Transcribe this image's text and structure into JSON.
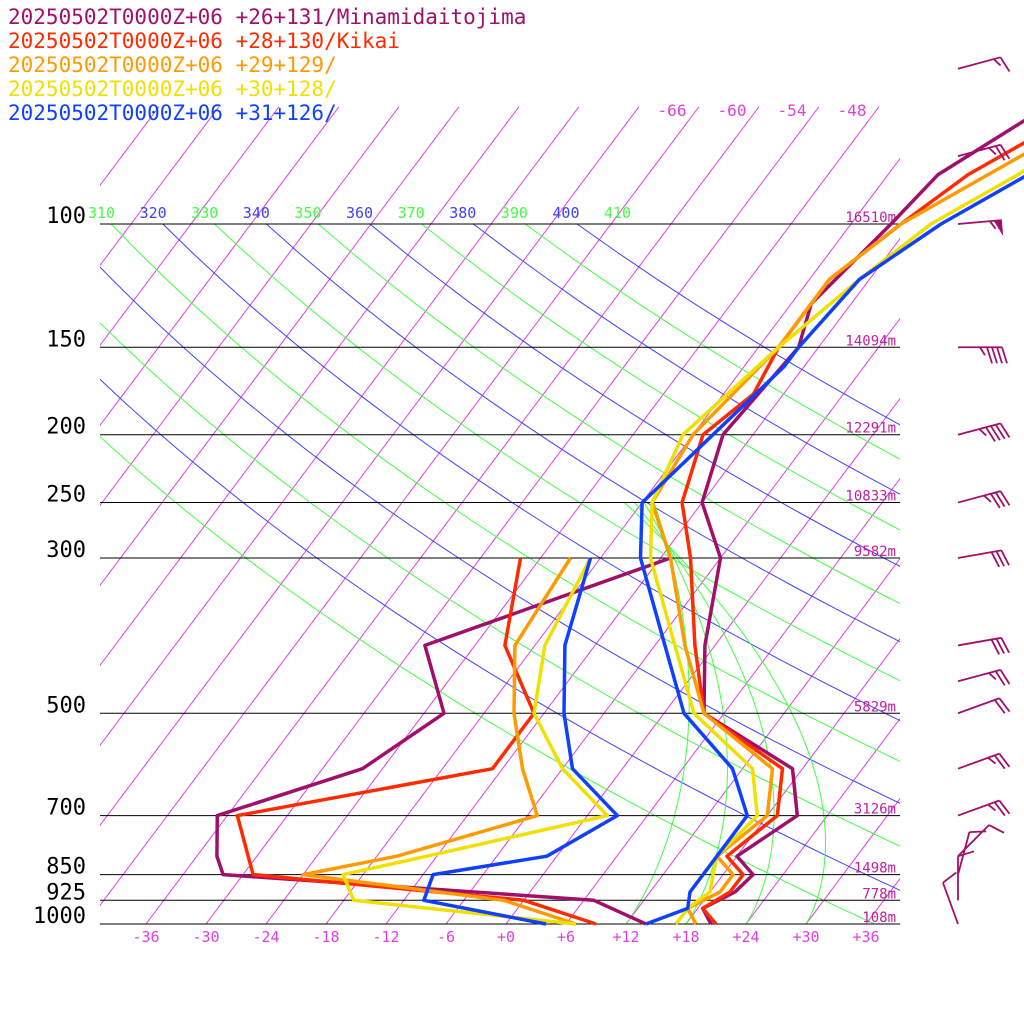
{
  "chart_data": {
    "type": "line",
    "title": "",
    "legend_placement": "top-left",
    "legend": [
      {
        "text": "20250502T0000Z+06 +26+131/Minamidaitojima",
        "color": "#a0106a"
      },
      {
        "text": "20250502T0000Z+06 +28+130/Kikai",
        "color": "#ff2a00"
      },
      {
        "text": "20250502T0000Z+06 +29+129/",
        "color": "#ff9a00"
      },
      {
        "text": "20250502T0000Z+06 +30+128/",
        "color": "#f0e000"
      },
      {
        "text": "20250502T0000Z+06 +31+126/",
        "color": "#1040ff"
      }
    ],
    "pressure_levels": [
      {
        "p": 100,
        "label": "100",
        "height": "16510m"
      },
      {
        "p": 150,
        "label": "150",
        "height": "14094m"
      },
      {
        "p": 200,
        "label": "200",
        "height": "12291m"
      },
      {
        "p": 250,
        "label": "250",
        "height": "10833m"
      },
      {
        "p": 300,
        "label": "300",
        "height": "9582m"
      },
      {
        "p": 500,
        "label": "500",
        "height": "5829m"
      },
      {
        "p": 700,
        "label": "700",
        "height": "3126m"
      },
      {
        "p": 850,
        "label": "850",
        "height": "1498m"
      },
      {
        "p": 925,
        "label": "925",
        "height": "778m"
      },
      {
        "p": 1000,
        "label": "1000",
        "height": "108m"
      }
    ],
    "x_ticks": [
      {
        "v": -36,
        "label": "-36"
      },
      {
        "v": -30,
        "label": "-30"
      },
      {
        "v": -24,
        "label": "-24"
      },
      {
        "v": -18,
        "label": "-18"
      },
      {
        "v": -12,
        "label": "-12"
      },
      {
        "v": -6,
        "label": "-6"
      },
      {
        "v": 0,
        "label": "+0"
      },
      {
        "v": 6,
        "label": "+6"
      },
      {
        "v": 12,
        "label": "+12"
      },
      {
        "v": 18,
        "label": "+18"
      },
      {
        "v": 24,
        "label": "+24"
      },
      {
        "v": 30,
        "label": "+30"
      },
      {
        "v": 36,
        "label": "+36"
      }
    ],
    "isotherm_top_labels": [
      {
        "v": -66,
        "label": "-66"
      },
      {
        "v": -60,
        "label": "-60"
      },
      {
        "v": -54,
        "label": "-54"
      },
      {
        "v": -48,
        "label": "-48"
      }
    ],
    "theta_labels": [
      {
        "label": "310",
        "color": "#40ff40"
      },
      {
        "label": "320",
        "color": "#4040ff"
      },
      {
        "label": "330",
        "color": "#40ff40"
      },
      {
        "label": "340",
        "color": "#4040ff"
      },
      {
        "label": "350",
        "color": "#40ff40"
      },
      {
        "label": "360",
        "color": "#4040ff"
      },
      {
        "label": "370",
        "color": "#40ff40"
      },
      {
        "label": "380",
        "color": "#4040ff"
      },
      {
        "label": "390",
        "color": "#40ff40"
      },
      {
        "label": "400",
        "color": "#4040ff"
      },
      {
        "label": "410",
        "color": "#40ff40"
      }
    ],
    "x_range": [
      -40,
      40
    ],
    "p_range": [
      1000,
      100
    ],
    "series": [
      {
        "name": "20250502T0000Z+06 +26+131/Minamidaitojima",
        "color": "#a0106a",
        "temperature": [
          [
            1000,
            20.5
          ],
          [
            950,
            18.5
          ],
          [
            900,
            20.5
          ],
          [
            850,
            21
          ],
          [
            800,
            18
          ],
          [
            700,
            21
          ],
          [
            600,
            17
          ],
          [
            500,
            4
          ],
          [
            400,
            -1
          ],
          [
            300,
            -6
          ],
          [
            250,
            -12
          ],
          [
            200,
            -15
          ],
          [
            150,
            -14
          ],
          [
            130,
            -16
          ],
          [
            100,
            -14
          ],
          [
            85,
            -13
          ],
          [
            70,
            -8
          ],
          [
            60,
            -3
          ],
          [
            50,
            2
          ],
          [
            40,
            10
          ]
        ],
        "dewpoint": [
          [
            1000,
            14
          ],
          [
            925,
            7
          ],
          [
            850,
            -32
          ],
          [
            800,
            -34
          ],
          [
            700,
            -37
          ],
          [
            600,
            -26
          ],
          [
            500,
            -22
          ],
          [
            400,
            -29
          ],
          [
            300,
            -11
          ]
        ]
      },
      {
        "name": "20250502T0000Z+06 +28+130/Kikai",
        "color": "#ff2a00",
        "temperature": [
          [
            1000,
            21
          ],
          [
            950,
            18.5
          ],
          [
            900,
            20
          ],
          [
            850,
            20
          ],
          [
            800,
            17
          ],
          [
            700,
            19
          ],
          [
            600,
            16
          ],
          [
            500,
            4
          ],
          [
            400,
            -2
          ],
          [
            300,
            -9
          ],
          [
            250,
            -14
          ],
          [
            200,
            -17
          ],
          [
            175,
            -15
          ],
          [
            150,
            -16
          ],
          [
            120,
            -16
          ],
          [
            100,
            -13
          ],
          [
            85,
            -10
          ],
          [
            70,
            -4
          ],
          [
            60,
            0
          ],
          [
            50,
            6
          ],
          [
            40,
            12
          ]
        ],
        "dewpoint": [
          [
            1000,
            9
          ],
          [
            925,
            0
          ],
          [
            850,
            -29
          ],
          [
            700,
            -35
          ],
          [
            600,
            -13
          ],
          [
            500,
            -13
          ],
          [
            400,
            -21
          ],
          [
            300,
            -26
          ]
        ]
      },
      {
        "name": "20250502T0000Z+06 +29+129/",
        "color": "#ff9a00",
        "temperature": [
          [
            1000,
            19
          ],
          [
            950,
            17
          ],
          [
            900,
            19
          ],
          [
            850,
            19
          ],
          [
            800,
            16
          ],
          [
            700,
            18
          ],
          [
            600,
            15
          ],
          [
            500,
            4
          ],
          [
            400,
            -3
          ],
          [
            300,
            -11
          ],
          [
            250,
            -17
          ],
          [
            200,
            -18
          ],
          [
            150,
            -16
          ],
          [
            120,
            -16
          ],
          [
            100,
            -13
          ],
          [
            85,
            -8
          ],
          [
            70,
            -2
          ],
          [
            60,
            2
          ],
          [
            50,
            8
          ],
          [
            40,
            14
          ]
        ],
        "dewpoint": [
          [
            1000,
            7
          ],
          [
            925,
            -2
          ],
          [
            850,
            -24
          ],
          [
            800,
            -16
          ],
          [
            700,
            -5
          ],
          [
            600,
            -10
          ],
          [
            500,
            -15
          ],
          [
            400,
            -20
          ],
          [
            300,
            -21
          ]
        ]
      },
      {
        "name": "20250502T0000Z+06 +30+128/",
        "color": "#f0e000",
        "temperature": [
          [
            1000,
            17
          ],
          [
            950,
            17
          ],
          [
            900,
            18
          ],
          [
            850,
            17
          ],
          [
            800,
            16
          ],
          [
            700,
            17
          ],
          [
            600,
            13
          ],
          [
            500,
            3
          ],
          [
            400,
            -4
          ],
          [
            300,
            -13
          ],
          [
            250,
            -17
          ],
          [
            200,
            -19
          ],
          [
            150,
            -16
          ],
          [
            120,
            -13
          ],
          [
            100,
            -10
          ],
          [
            85,
            -5
          ],
          [
            70,
            0
          ],
          [
            60,
            4
          ],
          [
            50,
            10
          ],
          [
            40,
            15
          ]
        ],
        "dewpoint": [
          [
            1000,
            7
          ],
          [
            925,
            -17
          ],
          [
            850,
            -20
          ],
          [
            800,
            -13
          ],
          [
            700,
            2
          ],
          [
            600,
            -6
          ],
          [
            500,
            -13
          ],
          [
            400,
            -17
          ],
          [
            300,
            -19
          ]
        ]
      },
      {
        "name": "20250502T0000Z+06 +31+126/",
        "color": "#1040ff",
        "temperature": [
          [
            1000,
            14
          ],
          [
            950,
            17
          ],
          [
            900,
            16
          ],
          [
            850,
            16
          ],
          [
            800,
            16
          ],
          [
            700,
            16
          ],
          [
            600,
            11
          ],
          [
            500,
            2
          ],
          [
            400,
            -5
          ],
          [
            300,
            -14
          ],
          [
            250,
            -18
          ],
          [
            200,
            -16
          ],
          [
            160,
            -14
          ],
          [
            150,
            -14
          ],
          [
            120,
            -13
          ],
          [
            100,
            -9
          ],
          [
            85,
            -4
          ],
          [
            70,
            1
          ],
          [
            60,
            5
          ],
          [
            50,
            11
          ],
          [
            40,
            17
          ]
        ],
        "dewpoint": [
          [
            1000,
            4
          ],
          [
            925,
            -10
          ],
          [
            850,
            -11
          ],
          [
            800,
            -1
          ],
          [
            700,
            3
          ],
          [
            600,
            -5
          ],
          [
            500,
            -10
          ],
          [
            400,
            -15
          ],
          [
            300,
            -19
          ]
        ]
      }
    ],
    "wind_barbs": [
      {
        "p": 60,
        "dir": 255,
        "speed": 15
      },
      {
        "p": 80,
        "dir": 255,
        "speed": 25
      },
      {
        "p": 100,
        "dir": 265,
        "speed": 55
      },
      {
        "p": 150,
        "dir": 270,
        "speed": 45
      },
      {
        "p": 200,
        "dir": 255,
        "speed": 45
      },
      {
        "p": 250,
        "dir": 255,
        "speed": 35
      },
      {
        "p": 300,
        "dir": 260,
        "speed": 30
      },
      {
        "p": 400,
        "dir": 260,
        "speed": 30
      },
      {
        "p": 450,
        "dir": 255,
        "speed": 25
      },
      {
        "p": 500,
        "dir": 250,
        "speed": 20
      },
      {
        "p": 600,
        "dir": 250,
        "speed": 25
      },
      {
        "p": 700,
        "dir": 250,
        "speed": 25
      },
      {
        "p": 800,
        "dir": 225,
        "speed": 10
      },
      {
        "p": 850,
        "dir": 195,
        "speed": 10
      },
      {
        "p": 925,
        "dir": 180,
        "speed": 10
      },
      {
        "p": 1000,
        "dir": 160,
        "speed": 10
      }
    ]
  }
}
